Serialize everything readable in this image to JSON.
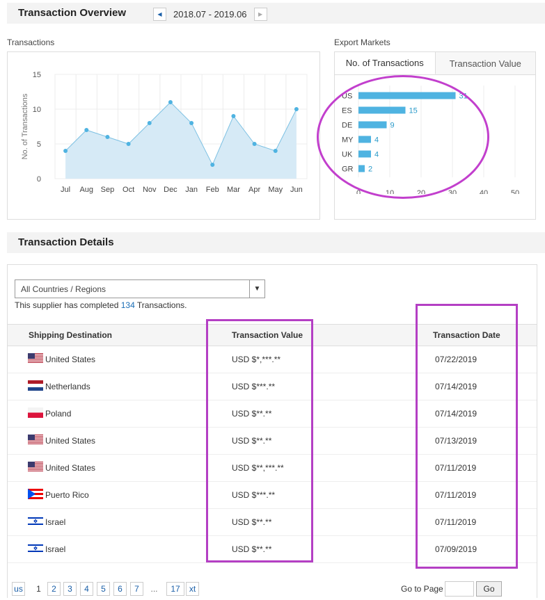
{
  "overview": {
    "title": "Transaction Overview",
    "date_range": "2018.07 - 2019.06",
    "prev_icon": "triangle-left",
    "next_icon": "triangle-right"
  },
  "transactions_panel": {
    "label": "Transactions"
  },
  "export_panel": {
    "label": "Export Markets",
    "tabs": [
      "No. of Transactions",
      "Transaction Value"
    ]
  },
  "chart_data": [
    {
      "type": "area",
      "ylabel": "No. of Transactions",
      "categories": [
        "Jul",
        "Aug",
        "Sep",
        "Oct",
        "Nov",
        "Dec",
        "Jan",
        "Feb",
        "Mar",
        "Apr",
        "May",
        "Jun"
      ],
      "values": [
        4,
        7,
        6,
        5,
        8,
        11,
        8,
        2,
        9,
        5,
        4,
        10
      ],
      "ylim": [
        0,
        15
      ],
      "yticks": [
        0,
        5,
        10,
        15
      ],
      "grid": true,
      "colors": {
        "fill": "#d6eaf6",
        "line": "#7dc1e3",
        "point": "#4fb3e1"
      }
    },
    {
      "type": "bar",
      "orientation": "horizontal",
      "categories": [
        "US",
        "ES",
        "DE",
        "MY",
        "UK",
        "GR"
      ],
      "values": [
        31,
        15,
        9,
        4,
        4,
        2
      ],
      "xlim": [
        0,
        50
      ],
      "xticks": [
        0,
        10,
        20,
        30,
        40,
        50
      ],
      "grid": true,
      "colors": {
        "bar": "#4fb3e1",
        "label": "#2a9ac9"
      }
    }
  ],
  "details": {
    "title": "Transaction Details",
    "filter_value": "All Countries / Regions",
    "summary_prefix": "This supplier has completed ",
    "summary_count": "134",
    "summary_suffix": " Transactions.",
    "columns": [
      "Shipping Destination",
      "Transaction Value",
      "Transaction Date"
    ],
    "rows": [
      {
        "country": "United States",
        "flag": "us-flag",
        "value": "USD $*,***.**",
        "date": "07/22/2019"
      },
      {
        "country": "Netherlands",
        "flag": "nl-flag",
        "value": "USD $***.**",
        "date": "07/14/2019"
      },
      {
        "country": "Poland",
        "flag": "pl-flag",
        "value": "USD $**.**",
        "date": "07/14/2019"
      },
      {
        "country": "United States",
        "flag": "us-flag",
        "value": "USD $**.**",
        "date": "07/13/2019"
      },
      {
        "country": "United States",
        "flag": "us-flag",
        "value": "USD $**,***.**",
        "date": "07/11/2019"
      },
      {
        "country": "Puerto Rico",
        "flag": "pr-flag",
        "value": "USD $***.**",
        "date": "07/11/2019"
      },
      {
        "country": "Israel",
        "flag": "il-flag",
        "value": "USD $**.**",
        "date": "07/11/2019"
      },
      {
        "country": "Israel",
        "flag": "il-flag",
        "value": "USD $**.**",
        "date": "07/09/2019"
      }
    ]
  },
  "pagination": {
    "prev_label": "us",
    "pages": [
      "1",
      "2",
      "3",
      "4",
      "5",
      "6",
      "7"
    ],
    "current_page": "1",
    "ellipsis": "...",
    "last_page": "17",
    "next_label": "xt",
    "goto_label": "Go to Page",
    "go_label": "Go"
  },
  "annotation_color": "#c23fcd"
}
